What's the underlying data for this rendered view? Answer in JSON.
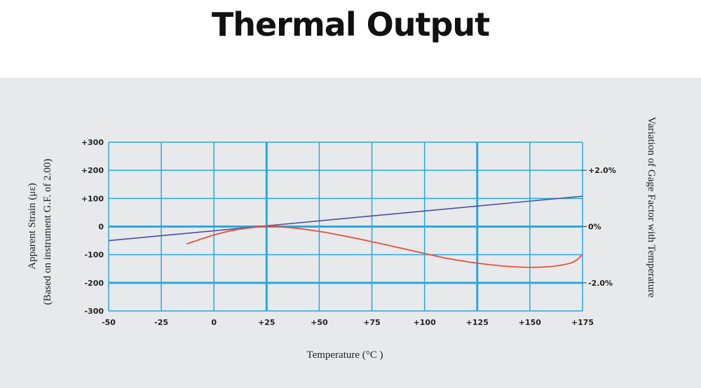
{
  "page": {
    "title": "Thermal Output"
  },
  "chart_data": {
    "type": "line",
    "title": "Thermal Output",
    "xlabel": "Temperature (°C )",
    "ylabel": [
      "Apparent Strain (με)",
      "(Based on instrument G.F. of 2.00)"
    ],
    "y2label": "Variation of Gage Factor with Temperature",
    "xlim": [
      -50,
      175
    ],
    "ylim": [
      -300,
      300
    ],
    "x_ticks": [
      -50,
      -25,
      0,
      25,
      50,
      75,
      100,
      125,
      150,
      175
    ],
    "x_tick_labels": [
      "-50",
      "-25",
      "0",
      "+25",
      "+50",
      "+75",
      "+100",
      "+125",
      "+150",
      "+175"
    ],
    "y_ticks": [
      300,
      200,
      100,
      0,
      -100,
      -200,
      -300
    ],
    "y_tick_labels": [
      "+300",
      "+200",
      "+100",
      "0",
      "-100",
      "-200",
      "-300"
    ],
    "y2_ticks": [
      200,
      0,
      -200
    ],
    "y2_tick_labels": [
      "+2.0%",
      "0%",
      "-2.0%"
    ],
    "grid": true,
    "colors": {
      "grid": "#29a8e0",
      "gage_factor_line": "#4a4fa0",
      "strain_curve": "#e8513a",
      "panel_bg": "#e8e9eb"
    },
    "series": [
      {
        "values_role": "gage_factor_variation",
        "x": [
          -50,
          175
        ],
        "y": [
          -50,
          108
        ]
      },
      {
        "values_role": "apparent_strain",
        "x": [
          -13,
          0,
          10,
          20,
          25,
          35,
          50,
          65,
          80,
          95,
          110,
          125,
          140,
          150,
          160,
          170,
          175
        ],
        "y": [
          -62,
          -30,
          -12,
          -2,
          0,
          -3,
          -17,
          -38,
          -62,
          -87,
          -112,
          -130,
          -142,
          -145,
          -142,
          -128,
          -100
        ]
      }
    ]
  }
}
